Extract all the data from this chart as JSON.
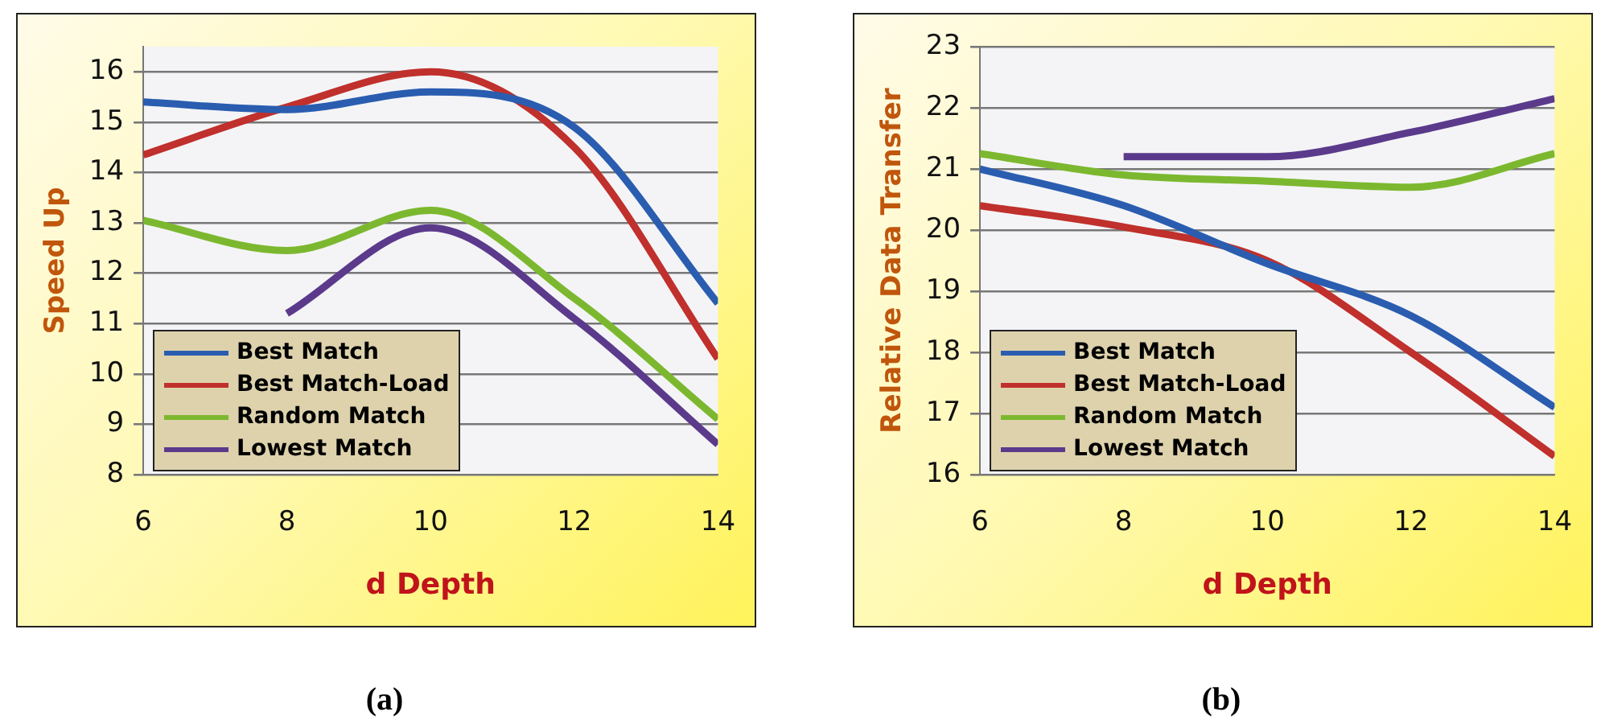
{
  "chart_data": [
    {
      "type": "line",
      "xlabel": "d Depth",
      "ylabel": "Speed Up",
      "x": [
        6,
        8,
        10,
        12,
        14
      ],
      "xlim": [
        6,
        14
      ],
      "xticks": [
        6,
        8,
        10,
        12,
        14
      ],
      "ylim": [
        8,
        16.5
      ],
      "yticks": [
        8,
        9,
        10,
        11,
        12,
        13,
        14,
        15,
        16
      ],
      "grid": "y",
      "legend": "bottom left",
      "annotations": [
        "(a)"
      ],
      "series": [
        {
          "name": "Best Match",
          "color": "#2a5db0",
          "values": [
            15.4,
            15.25,
            15.6,
            14.9,
            11.4
          ]
        },
        {
          "name": "Best Match-Load",
          "color": "#c0302c",
          "values": [
            14.35,
            15.3,
            16.0,
            14.5,
            10.3
          ]
        },
        {
          "name": "Random Match",
          "color": "#7cb82f",
          "values": [
            13.05,
            12.45,
            13.25,
            11.5,
            9.1
          ]
        },
        {
          "name": "Lowest Match",
          "color": "#5b3a8c",
          "values": [
            null,
            11.2,
            12.9,
            11.1,
            8.6
          ]
        }
      ]
    },
    {
      "type": "line",
      "xlabel": "d Depth",
      "ylabel": "Relative Data Transfer",
      "x": [
        6,
        8,
        10,
        12,
        14
      ],
      "xlim": [
        6,
        14
      ],
      "xticks": [
        6,
        8,
        10,
        12,
        14
      ],
      "ylim": [
        16,
        23
      ],
      "yticks": [
        16,
        17,
        18,
        19,
        20,
        21,
        22,
        23
      ],
      "grid": "y",
      "legend": "bottom left",
      "annotations": [
        "(b)"
      ],
      "series": [
        {
          "name": "Best Match",
          "color": "#2a5db0",
          "values": [
            21.0,
            20.4,
            19.45,
            18.6,
            17.1
          ]
        },
        {
          "name": "Best Match-Load",
          "color": "#c0302c",
          "values": [
            20.4,
            20.05,
            19.5,
            18.0,
            16.3
          ]
        },
        {
          "name": "Random Match",
          "color": "#7cb82f",
          "values": [
            21.25,
            20.9,
            20.8,
            20.7,
            21.25
          ]
        },
        {
          "name": "Lowest Match",
          "color": "#5b3a8c",
          "values": [
            null,
            21.2,
            21.2,
            21.6,
            22.15
          ]
        }
      ]
    }
  ]
}
